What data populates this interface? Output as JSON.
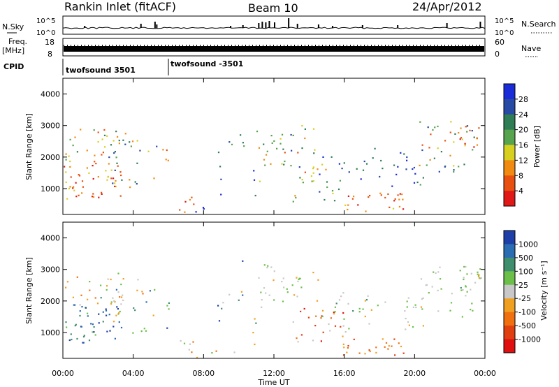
{
  "header": {
    "station": "Rankin Inlet (fitACF)",
    "beam": "Beam 10",
    "date": "24/Apr/2012"
  },
  "panels": {
    "nsky_label": "N.Sky",
    "nsearch_label": "N.Search",
    "nave_label": "Nave",
    "freq_label_1": "Freq.",
    "freq_label_2": "[MHz]",
    "cpid_label": "CPID",
    "nsky_ticks": [
      "10^5",
      "10^0"
    ],
    "nsearch_ticks": [
      "10^5",
      "10^0"
    ],
    "freq_ticks": [
      "18",
      "8"
    ],
    "nave_ticks": [
      "60",
      "0"
    ],
    "cpid_segments": [
      {
        "label": "twofsound 3501",
        "start_hour": 0
      },
      {
        "label": "twofsound -3501",
        "start_hour": 6
      }
    ]
  },
  "chart_data": [
    {
      "type": "heatmap",
      "name": "power",
      "ylabel": "Slant Range [km]",
      "xlabel": "",
      "xlim_hours": [
        0,
        24
      ],
      "ylim_km": [
        180,
        4500
      ],
      "yticks": [
        "4000",
        "3000",
        "2000",
        "1000"
      ],
      "colorbar": {
        "label": "Power [dB]",
        "ticks": [
          "28",
          "24",
          "20",
          "16",
          "12",
          "8",
          "4"
        ],
        "colors": [
          "#1a2bd8",
          "#274aa5",
          "#2e7d55",
          "#57a34e",
          "#d8d020",
          "#f08a10",
          "#e85010",
          "#e01818"
        ]
      }
    },
    {
      "type": "heatmap",
      "name": "velocity",
      "ylabel": "Slant Range [km]",
      "xlabel": "Time UT",
      "xlim_hours": [
        0,
        24
      ],
      "ylim_km": [
        180,
        4500
      ],
      "yticks": [
        "4000",
        "3000",
        "2000",
        "1000"
      ],
      "xticks": [
        "00:00",
        "04:00",
        "08:00",
        "12:00",
        "16:00",
        "20:00",
        "00:00"
      ],
      "colorbar": {
        "label": "Velocity [m s⁻¹]",
        "ticks": [
          "1000",
          "500",
          "100",
          "25",
          "-25",
          "-100",
          "-500",
          "-1000"
        ],
        "colors": [
          "#1f3fa8",
          "#2b6db2",
          "#3f8f6e",
          "#6cc04a",
          "#c8c8c8",
          "#f0a020",
          "#f07010",
          "#e04010",
          "#e01010"
        ]
      }
    }
  ]
}
